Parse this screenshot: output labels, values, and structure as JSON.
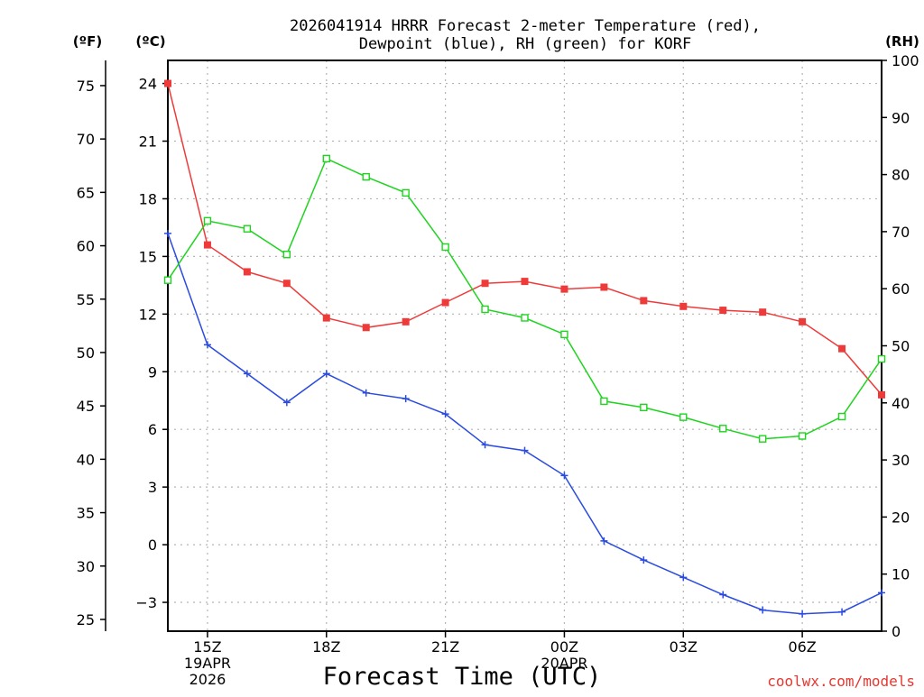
{
  "chart_data": {
    "type": "line",
    "title": {
      "line1": "2026041914 HRRR Forecast 2-meter Temperature (red),",
      "line2": "Dewpoint (blue), RH (green) for KORF"
    },
    "xlabel": "Forecast Time (UTC)",
    "credit": "coolwx.com/models",
    "axes": {
      "fahrenheit": {
        "unit": "(ºF)",
        "ticks": [
          "25",
          "30",
          "35",
          "40",
          "45",
          "50",
          "55",
          "60",
          "65",
          "70",
          "75"
        ]
      },
      "celsius": {
        "unit": "(ºC)",
        "ticks": [
          "-3",
          "0",
          "3",
          "6",
          "9",
          "12",
          "15",
          "18",
          "21",
          "24"
        ],
        "ylim": [
          -4.5,
          25.2
        ]
      },
      "rh": {
        "unit": "(RH)",
        "ticks": [
          "0",
          "10",
          "20",
          "30",
          "40",
          "50",
          "60",
          "70",
          "80",
          "90",
          "100"
        ],
        "ylim": [
          0,
          100
        ]
      }
    },
    "hours": [
      14,
      15,
      16,
      17,
      18,
      19,
      20,
      21,
      22,
      23,
      24,
      25,
      26,
      27,
      28,
      29,
      30,
      31,
      32
    ],
    "x_ticks": [
      {
        "hour": 15,
        "line1": "15Z",
        "line2": "19APR",
        "line3": "2026"
      },
      {
        "hour": 18,
        "line1": "18Z"
      },
      {
        "hour": 21,
        "line1": "21Z"
      },
      {
        "hour": 24,
        "line1": "00Z",
        "line2": "20APR"
      },
      {
        "hour": 27,
        "line1": "03Z"
      },
      {
        "hour": 30,
        "line1": "06Z"
      }
    ],
    "grid": true,
    "series": [
      {
        "name": "Temperature",
        "color": "#ef3a3a",
        "axis": "celsius",
        "marker": "filled-square",
        "values": [
          24.0,
          15.6,
          14.2,
          13.6,
          11.8,
          11.3,
          11.6,
          12.6,
          13.6,
          13.7,
          13.3,
          13.4,
          12.7,
          12.4,
          12.2,
          12.1,
          11.6,
          10.2,
          7.8
        ]
      },
      {
        "name": "Dewpoint",
        "color": "#2a4be0",
        "axis": "celsius",
        "marker": "plus",
        "values": [
          16.2,
          10.4,
          8.9,
          7.4,
          8.9,
          7.9,
          7.6,
          6.8,
          5.2,
          4.9,
          3.6,
          0.2,
          -0.8,
          -1.7,
          -2.6,
          -3.4,
          -3.6,
          -3.5,
          -2.5
        ]
      },
      {
        "name": "RH",
        "color": "#1fd41f",
        "axis": "rh",
        "marker": "open-square",
        "values": [
          61.5,
          71.9,
          70.5,
          66.0,
          82.8,
          79.6,
          76.8,
          67.3,
          56.4,
          54.9,
          52.0,
          40.3,
          39.2,
          37.5,
          35.5,
          33.7,
          34.2,
          37.6,
          47.7
        ]
      }
    ]
  }
}
